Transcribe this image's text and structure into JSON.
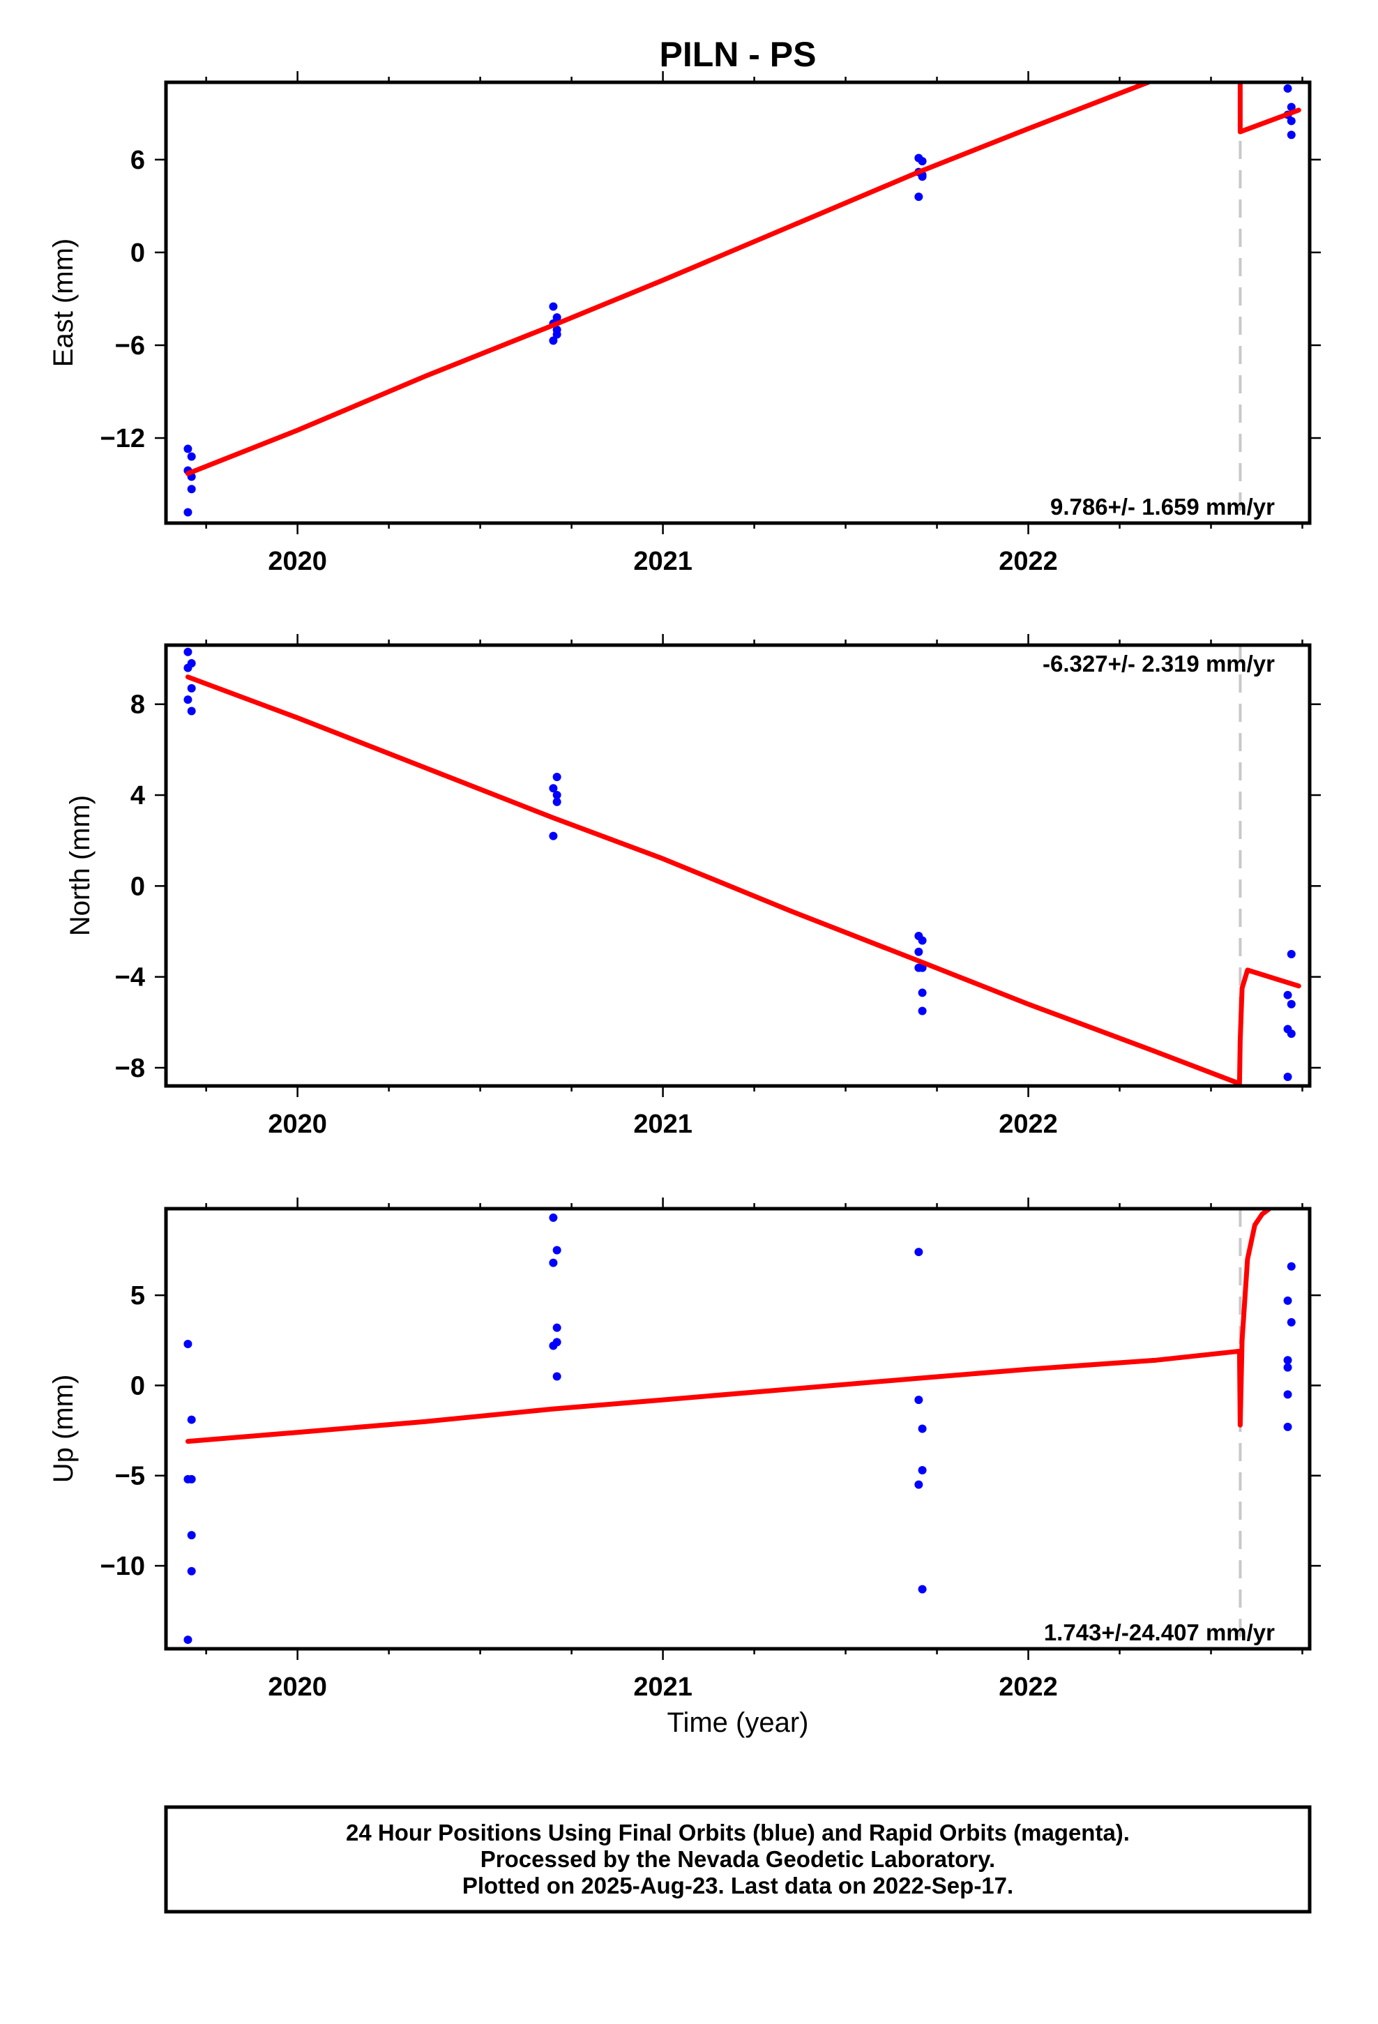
{
  "title": "PILN - PS",
  "x_axis_label": "Time (year)",
  "footer": {
    "line1": "24 Hour Positions Using Final Orbits (blue) and Rapid Orbits (magenta).",
    "line2": "Processed by the Nevada Geodetic Laboratory.",
    "line3": "Plotted on 2025-Aug-23. Last data on 2022-Sep-17."
  },
  "colors": {
    "data_points": "#0000ff",
    "model_fit": "#ff0000",
    "event_line": "#c8c8c8",
    "frame": "#000000"
  },
  "chart_data": [
    {
      "type": "scatter",
      "panel": "east",
      "ylabel": "East (mm)",
      "rate_label": "9.786+/- 1.659 mm/yr",
      "xlim": [
        2019.64,
        2022.77
      ],
      "ylim": [
        -17.5,
        11.0
      ],
      "x_ticks": [
        2020,
        2021,
        2022
      ],
      "x_tick_labels": [
        "2020",
        "2021",
        "2022"
      ],
      "y_ticks": [
        6,
        0,
        -6,
        -12
      ],
      "y_tick_labels": [
        "6",
        "0",
        "−6",
        "−12"
      ],
      "event_x": 2022.58,
      "points": {
        "x": [
          2019.7,
          2019.71,
          2019.7,
          2019.71,
          2019.71,
          2019.7,
          2020.7,
          2020.71,
          2020.7,
          2020.71,
          2020.71,
          2020.7,
          2021.7,
          2021.71,
          2021.7,
          2021.71,
          2021.71,
          2021.7,
          2022.71,
          2022.72,
          2022.71,
          2022.72,
          2022.72
        ],
        "y": [
          -12.7,
          -13.2,
          -14.1,
          -14.5,
          -15.3,
          -16.8,
          -3.5,
          -4.2,
          -4.6,
          -5.0,
          -5.3,
          -5.7,
          6.1,
          5.9,
          5.2,
          4.9,
          5.0,
          3.6,
          10.6,
          9.4,
          8.9,
          8.5,
          7.6
        ],
        "series_color": "#0000ff"
      },
      "model": {
        "x": [
          2019.7,
          2020.0,
          2020.35,
          2020.7,
          2021.0,
          2021.35,
          2021.7,
          2022.0,
          2022.35,
          2022.576,
          2022.58,
          2022.58,
          2022.74
        ],
        "y": [
          -14.3,
          -11.5,
          -8.0,
          -4.7,
          -1.8,
          1.7,
          5.2,
          8.0,
          11.2,
          13.3,
          13.3,
          7.8,
          9.2
        ],
        "series_color": "#ff0000"
      }
    },
    {
      "type": "scatter",
      "panel": "north",
      "ylabel": "North (mm)",
      "rate_label": "-6.327+/- 2.319 mm/yr",
      "xlim": [
        2019.64,
        2022.77
      ],
      "ylim": [
        -8.8,
        10.6
      ],
      "x_ticks": [
        2020,
        2021,
        2022
      ],
      "x_tick_labels": [
        "2020",
        "2021",
        "2022"
      ],
      "y_ticks": [
        8,
        4,
        0,
        -4,
        -8
      ],
      "y_tick_labels": [
        "8",
        "4",
        "0",
        "−4",
        "−8"
      ],
      "event_x": 2022.58,
      "points": {
        "x": [
          2019.7,
          2019.71,
          2019.7,
          2019.71,
          2019.7,
          2019.71,
          2020.71,
          2020.7,
          2020.71,
          2020.71,
          2020.7,
          2021.7,
          2021.71,
          2021.7,
          2021.71,
          2021.7,
          2021.71,
          2021.71,
          2022.72,
          2022.71,
          2022.72,
          2022.71,
          2022.72,
          2022.71
        ],
        "y": [
          10.3,
          9.8,
          9.6,
          8.7,
          8.2,
          7.7,
          4.8,
          4.3,
          4.0,
          3.7,
          2.2,
          -2.2,
          -2.4,
          -2.9,
          -3.6,
          -3.6,
          -4.7,
          -5.5,
          -3.0,
          -4.8,
          -5.2,
          -6.3,
          -6.5,
          -8.4
        ],
        "series_color": "#0000ff"
      },
      "model": {
        "x": [
          2019.7,
          2020.0,
          2020.35,
          2020.7,
          2021.0,
          2021.35,
          2021.7,
          2022.0,
          2022.35,
          2022.578,
          2022.58,
          2022.585,
          2022.6,
          2022.74
        ],
        "y": [
          9.2,
          7.4,
          5.2,
          3.0,
          1.2,
          -1.1,
          -3.3,
          -5.2,
          -7.3,
          -8.7,
          -6.8,
          -4.5,
          -3.7,
          -4.4
        ],
        "series_color": "#ff0000"
      }
    },
    {
      "type": "scatter",
      "panel": "up",
      "ylabel": "Up (mm)",
      "rate_label": "1.743+/-24.407 mm/yr",
      "xlim": [
        2019.64,
        2022.77
      ],
      "ylim": [
        -14.6,
        9.8
      ],
      "x_ticks": [
        2020,
        2021,
        2022
      ],
      "x_tick_labels": [
        "2020",
        "2021",
        "2022"
      ],
      "y_ticks": [
        5,
        0,
        -5,
        -10
      ],
      "y_tick_labels": [
        "5",
        "0",
        "−5",
        "−10"
      ],
      "event_x": 2022.58,
      "points": {
        "x": [
          2019.7,
          2019.71,
          2019.7,
          2019.71,
          2019.71,
          2019.71,
          2019.7,
          2020.7,
          2020.71,
          2020.7,
          2020.71,
          2020.71,
          2020.7,
          2020.71,
          2021.7,
          2021.7,
          2021.71,
          2021.71,
          2021.7,
          2021.71,
          2022.72,
          2022.71,
          2022.72,
          2022.71,
          2022.71,
          2022.71,
          2022.71
        ],
        "y": [
          2.3,
          -1.9,
          -5.2,
          -5.2,
          -8.3,
          -10.3,
          -14.1,
          9.3,
          7.5,
          6.8,
          3.2,
          2.4,
          2.2,
          0.5,
          7.4,
          -0.8,
          -2.4,
          -4.7,
          -5.5,
          -11.3,
          6.6,
          4.7,
          3.5,
          1.4,
          1.0,
          -0.5,
          -2.3
        ],
        "series_color": "#0000ff"
      },
      "model": {
        "x": [
          2019.7,
          2020.0,
          2020.35,
          2020.7,
          2021.0,
          2021.35,
          2021.7,
          2022.0,
          2022.35,
          2022.578,
          2022.58,
          2022.585,
          2022.6,
          2022.62,
          2022.64,
          2022.66
        ],
        "y": [
          -3.1,
          -2.6,
          -2.0,
          -1.3,
          -0.8,
          -0.2,
          0.4,
          0.9,
          1.4,
          1.9,
          -2.2,
          2.5,
          7.0,
          8.9,
          9.5,
          9.8
        ],
        "series_color": "#ff0000"
      }
    }
  ]
}
